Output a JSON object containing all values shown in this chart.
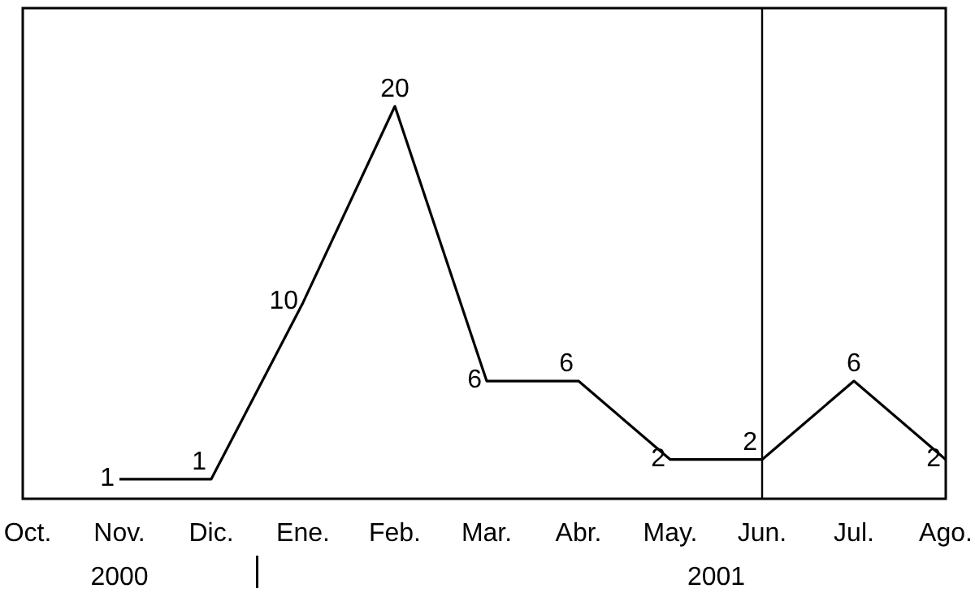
{
  "chart_data": {
    "type": "line",
    "categories": [
      "Oct.",
      "Nov.",
      "Dic.",
      "Ene.",
      "Feb.",
      "Mar.",
      "Abr.",
      "May.",
      "Jun.",
      "Jul.",
      "Ago."
    ],
    "series": [
      {
        "color": "#000000",
        "values": [
          null,
          1,
          1,
          10,
          20,
          6,
          6,
          2,
          2,
          6,
          2
        ]
      }
    ],
    "ylim": [
      0,
      25
    ],
    "tick_labels": "x",
    "data_labels": true,
    "marker": "none",
    "line_style": "solid",
    "ref_lines": [
      {
        "axis": "x",
        "value": "Jun.",
        "color": "#000000"
      }
    ],
    "annotations": [
      "2000",
      "2001"
    ]
  }
}
